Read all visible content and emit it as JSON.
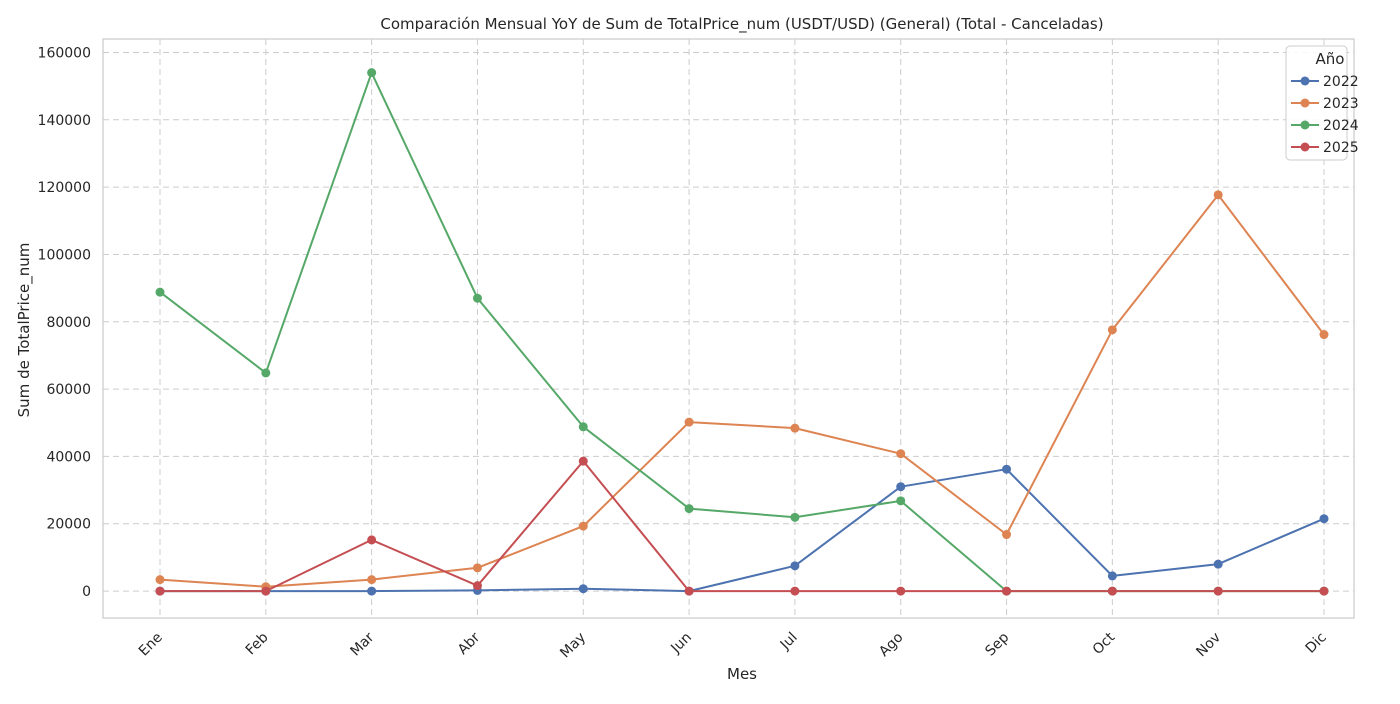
{
  "chart_data": {
    "type": "line",
    "title": "Comparación Mensual YoY de Sum de TotalPrice_num (USDT/USD) (General) (Total - Canceladas)",
    "xlabel": "Mes",
    "ylabel": "Sum de TotalPrice_num",
    "categories": [
      "Ene",
      "Feb",
      "Mar",
      "Abr",
      "May",
      "Jun",
      "Jul",
      "Ago",
      "Sep",
      "Oct",
      "Nov",
      "Dic"
    ],
    "ylim": [
      -8000,
      164000
    ],
    "yticks": [
      0,
      20000,
      40000,
      60000,
      80000,
      100000,
      120000,
      140000,
      160000
    ],
    "ytick_labels": [
      "0",
      "20000",
      "40000",
      "60000",
      "80000",
      "100000",
      "120000",
      "140000",
      "160000"
    ],
    "grid": true,
    "legend": {
      "title": "Año",
      "placement": "top-right"
    },
    "series": [
      {
        "name": "2022",
        "color": "#4c72b0",
        "values": [
          0,
          0,
          0,
          200,
          700,
          0,
          7500,
          31000,
          36200,
          4500,
          8000,
          21500
        ]
      },
      {
        "name": "2023",
        "color": "#dd8452",
        "values": [
          3400,
          1300,
          3400,
          6900,
          19300,
          50200,
          48400,
          40800,
          16800,
          77600,
          117700,
          76200
        ]
      },
      {
        "name": "2024",
        "color": "#55a868",
        "values": [
          88800,
          64800,
          154000,
          87000,
          48800,
          24500,
          21900,
          26800,
          0,
          0,
          0,
          0
        ]
      },
      {
        "name": "2025",
        "color": "#c44e52",
        "values": [
          0,
          0,
          15200,
          1600,
          38600,
          0,
          0,
          0,
          0,
          0,
          0,
          0
        ]
      }
    ]
  }
}
